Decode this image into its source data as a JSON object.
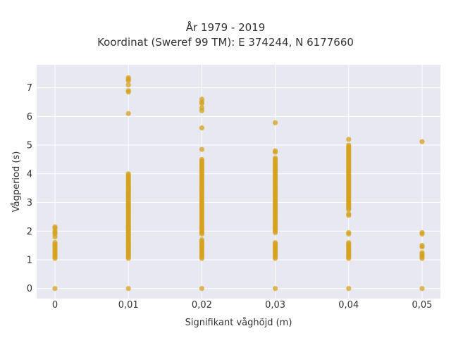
{
  "chart_data": {
    "type": "scatter",
    "title_lines": [
      "År 1979 - 2019",
      "Koordinat (Sweref 99 TM): E 374244, N 6177660"
    ],
    "xlabel": "Signifikant våghöjd (m)",
    "ylabel": "Vågperiod (s)",
    "x_ticks": [
      "0",
      "0,01",
      "0,02",
      "0,03",
      "0,04",
      "0,05"
    ],
    "y_ticks": [
      "0",
      "1",
      "2",
      "3",
      "4",
      "5",
      "6",
      "7"
    ],
    "xlim": [
      -0.0025,
      0.0525
    ],
    "ylim": [
      -0.35,
      7.8
    ],
    "grid": true,
    "colors": {
      "marker": "#d4a21c",
      "plot_bg": "#e8e8f0",
      "grid": "#ffffff"
    },
    "series": [
      {
        "points": [
          [
            0,
            0
          ],
          [
            0,
            1.05
          ],
          [
            0,
            1.1
          ],
          [
            0,
            1.15
          ],
          [
            0,
            1.2
          ],
          [
            0,
            1.25
          ],
          [
            0,
            1.3
          ],
          [
            0,
            1.35
          ],
          [
            0,
            1.4
          ],
          [
            0,
            1.45
          ],
          [
            0,
            1.5
          ],
          [
            0,
            1.55
          ],
          [
            0,
            1.6
          ],
          [
            0,
            1.8
          ],
          [
            0,
            1.9
          ],
          [
            0,
            1.95
          ],
          [
            0,
            2.0
          ],
          [
            0,
            2.1
          ],
          [
            0,
            2.15
          ],
          [
            0.01,
            0
          ],
          [
            0.01,
            6.1
          ],
          [
            0.01,
            6.85
          ],
          [
            0.01,
            6.9
          ],
          [
            0.01,
            7.1
          ],
          [
            0.01,
            7.25
          ],
          [
            0.01,
            7.3
          ],
          [
            0.01,
            7.35
          ],
          [
            0.02,
            0
          ],
          [
            0.02,
            5.6
          ],
          [
            0.02,
            4.85
          ],
          [
            0.02,
            6.2
          ],
          [
            0.02,
            6.3
          ],
          [
            0.02,
            6.45
          ],
          [
            0.02,
            6.5
          ],
          [
            0.02,
            6.6
          ],
          [
            0.03,
            0
          ],
          [
            0.03,
            5.78
          ],
          [
            0.03,
            4.75
          ],
          [
            0.03,
            4.8
          ],
          [
            0.04,
            0
          ],
          [
            0.04,
            5.2
          ],
          [
            0.04,
            2.55
          ],
          [
            0.04,
            2.6
          ],
          [
            0.04,
            1.9
          ],
          [
            0.04,
            1.95
          ],
          [
            0.05,
            0
          ],
          [
            0.05,
            5.12
          ],
          [
            0.05,
            1.95
          ],
          [
            0.05,
            1.9
          ],
          [
            0.05,
            1.5
          ],
          [
            0.05,
            1.45
          ],
          [
            0.05,
            1.25
          ],
          [
            0.05,
            1.2
          ],
          [
            0.05,
            1.15
          ],
          [
            0.05,
            1.1
          ],
          [
            0.05,
            1.05
          ]
        ],
        "ranges": [
          {
            "x": 0.01,
            "from": 1.05,
            "to": 4.0,
            "step": 0.05
          },
          {
            "x": 0.02,
            "from": 1.05,
            "to": 1.7,
            "step": 0.05
          },
          {
            "x": 0.02,
            "from": 1.9,
            "to": 4.5,
            "step": 0.05
          },
          {
            "x": 0.03,
            "from": 1.05,
            "to": 1.6,
            "step": 0.05
          },
          {
            "x": 0.03,
            "from": 1.95,
            "to": 4.55,
            "step": 0.05
          },
          {
            "x": 0.04,
            "from": 1.05,
            "to": 1.6,
            "step": 0.05
          },
          {
            "x": 0.04,
            "from": 2.75,
            "to": 5.0,
            "step": 0.05
          }
        ]
      }
    ]
  }
}
